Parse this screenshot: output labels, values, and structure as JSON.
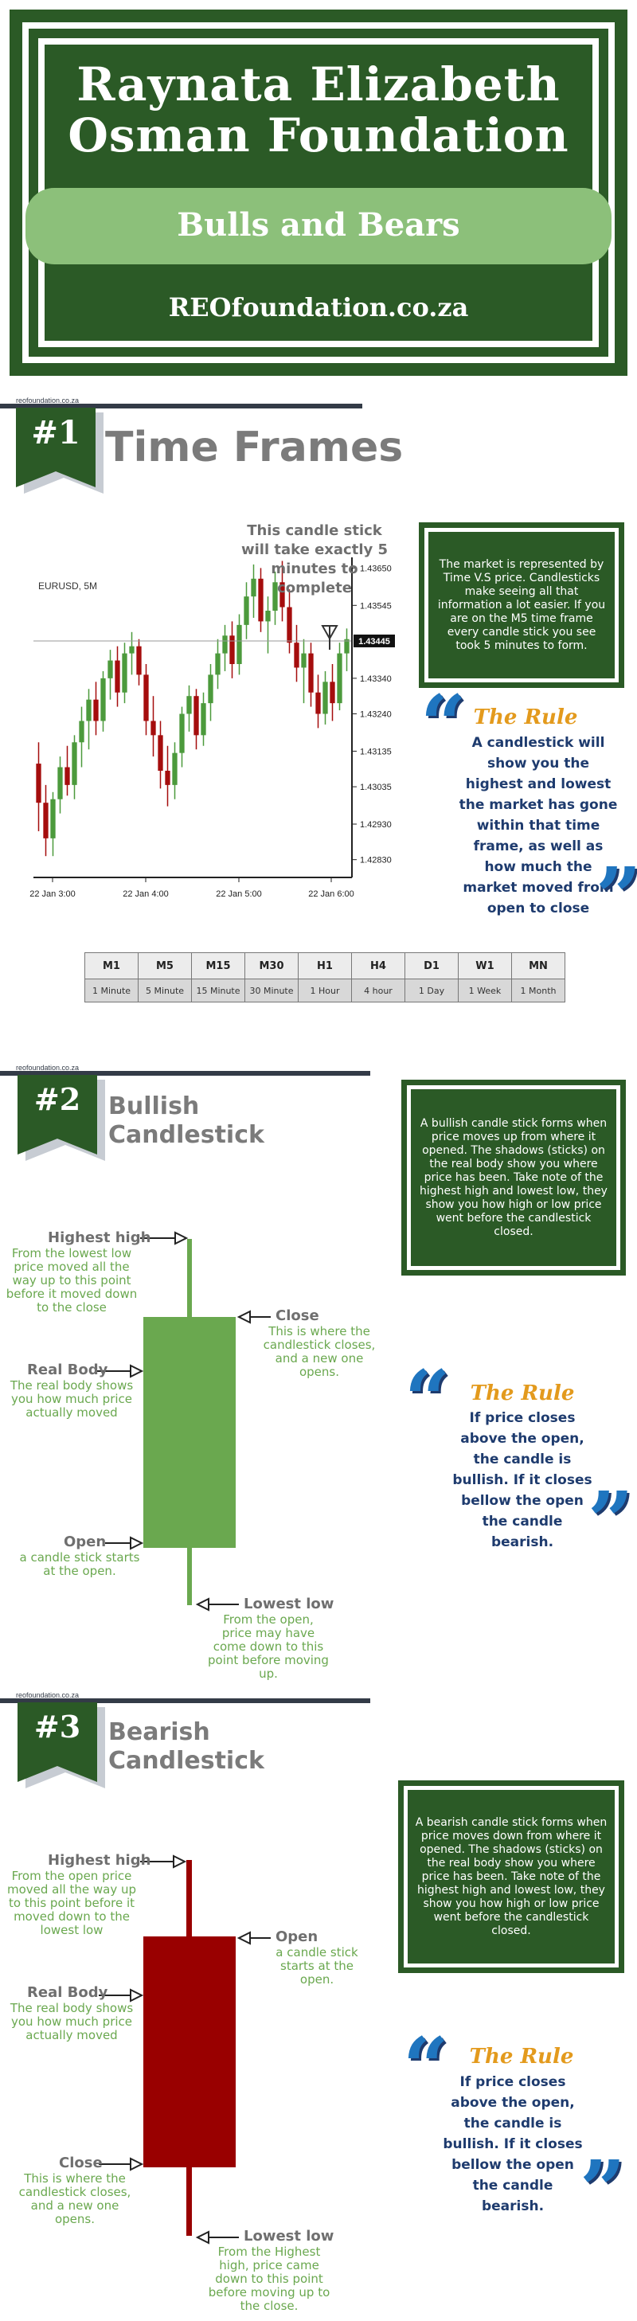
{
  "header": {
    "title_line1": "Raynata Elizabeth",
    "title_line2": "Osman Foundation",
    "subtitle": "Bulls and Bears",
    "url": "REOfoundation.co.za"
  },
  "site_tag": "reofoundation.co.za",
  "section1": {
    "number": "#1",
    "title": "Time Frames",
    "callout": "This candle stick will take exactly 5 minutes to complete",
    "info": "The market is represented by Time V.S price. Candlesticks make seeing all that information a lot easier. If you are on the M5 time frame every candle stick you see took 5 minutes to form.",
    "rule_heading": "The Rule",
    "rule_text": "A candlestick will show you the highest and lowest the market has gone within that time frame, as well as how much the market moved from open to close"
  },
  "chart_data": {
    "type": "candlestick",
    "title": "EURUSD, 5M",
    "x_ticks": [
      "22 Jan 3:00",
      "22 Jan 4:00",
      "22 Jan 5:00",
      "22 Jan 6:00"
    ],
    "y_ticks": [
      "1.43650",
      "1.43545",
      "1.43445",
      "1.43340",
      "1.43240",
      "1.43135",
      "1.43035",
      "1.42930",
      "1.42830"
    ],
    "current_price": "1.43445",
    "ylim": [
      1.4278,
      1.4368
    ],
    "up_color": "#4c9a3c",
    "down_color": "#a50d0d",
    "candles": [
      {
        "o": 1.431,
        "h": 1.4316,
        "l": 1.4291,
        "c": 1.4299
      },
      {
        "o": 1.4299,
        "h": 1.4304,
        "l": 1.4284,
        "c": 1.4289
      },
      {
        "o": 1.4289,
        "h": 1.4302,
        "l": 1.4284,
        "c": 1.43
      },
      {
        "o": 1.43,
        "h": 1.4312,
        "l": 1.4296,
        "c": 1.4309
      },
      {
        "o": 1.4309,
        "h": 1.4315,
        "l": 1.4301,
        "c": 1.4304
      },
      {
        "o": 1.4304,
        "h": 1.4318,
        "l": 1.43,
        "c": 1.4316
      },
      {
        "o": 1.4316,
        "h": 1.4326,
        "l": 1.4309,
        "c": 1.4322
      },
      {
        "o": 1.4322,
        "h": 1.4331,
        "l": 1.4314,
        "c": 1.4328
      },
      {
        "o": 1.4328,
        "h": 1.4333,
        "l": 1.4318,
        "c": 1.4322
      },
      {
        "o": 1.4322,
        "h": 1.4336,
        "l": 1.4319,
        "c": 1.4334
      },
      {
        "o": 1.4334,
        "h": 1.4342,
        "l": 1.4328,
        "c": 1.4339
      },
      {
        "o": 1.4339,
        "h": 1.4343,
        "l": 1.4326,
        "c": 1.433
      },
      {
        "o": 1.433,
        "h": 1.4344,
        "l": 1.4327,
        "c": 1.4341
      },
      {
        "o": 1.4341,
        "h": 1.4347,
        "l": 1.4335,
        "c": 1.4343
      },
      {
        "o": 1.4343,
        "h": 1.4345,
        "l": 1.4332,
        "c": 1.4335
      },
      {
        "o": 1.4335,
        "h": 1.4338,
        "l": 1.4318,
        "c": 1.4322
      },
      {
        "o": 1.4322,
        "h": 1.4329,
        "l": 1.4312,
        "c": 1.4318
      },
      {
        "o": 1.4318,
        "h": 1.4322,
        "l": 1.4303,
        "c": 1.4308
      },
      {
        "o": 1.4308,
        "h": 1.4315,
        "l": 1.4298,
        "c": 1.4304
      },
      {
        "o": 1.4304,
        "h": 1.4316,
        "l": 1.43,
        "c": 1.4313
      },
      {
        "o": 1.4313,
        "h": 1.4326,
        "l": 1.4309,
        "c": 1.4324
      },
      {
        "o": 1.4324,
        "h": 1.4332,
        "l": 1.4319,
        "c": 1.4329
      },
      {
        "o": 1.4329,
        "h": 1.4331,
        "l": 1.4314,
        "c": 1.4318
      },
      {
        "o": 1.4318,
        "h": 1.433,
        "l": 1.4315,
        "c": 1.4327
      },
      {
        "o": 1.4327,
        "h": 1.4338,
        "l": 1.4322,
        "c": 1.4335
      },
      {
        "o": 1.4335,
        "h": 1.4345,
        "l": 1.4331,
        "c": 1.4341
      },
      {
        "o": 1.4341,
        "h": 1.4349,
        "l": 1.4336,
        "c": 1.4346
      },
      {
        "o": 1.4346,
        "h": 1.435,
        "l": 1.4334,
        "c": 1.4338
      },
      {
        "o": 1.4338,
        "h": 1.4352,
        "l": 1.4335,
        "c": 1.4349
      },
      {
        "o": 1.4349,
        "h": 1.4361,
        "l": 1.4345,
        "c": 1.4357
      },
      {
        "o": 1.4357,
        "h": 1.4366,
        "l": 1.4351,
        "c": 1.4362
      },
      {
        "o": 1.4362,
        "h": 1.4365,
        "l": 1.4347,
        "c": 1.435
      },
      {
        "o": 1.435,
        "h": 1.4357,
        "l": 1.4341,
        "c": 1.4353
      },
      {
        "o": 1.4353,
        "h": 1.4364,
        "l": 1.4349,
        "c": 1.4361
      },
      {
        "o": 1.4361,
        "h": 1.4367,
        "l": 1.435,
        "c": 1.4354
      },
      {
        "o": 1.4354,
        "h": 1.4359,
        "l": 1.4341,
        "c": 1.4344
      },
      {
        "o": 1.4344,
        "h": 1.4349,
        "l": 1.4333,
        "c": 1.4337
      },
      {
        "o": 1.4337,
        "h": 1.4345,
        "l": 1.4327,
        "c": 1.4341
      },
      {
        "o": 1.4341,
        "h": 1.4344,
        "l": 1.4326,
        "c": 1.433
      },
      {
        "o": 1.433,
        "h": 1.4335,
        "l": 1.432,
        "c": 1.4324
      },
      {
        "o": 1.4324,
        "h": 1.4336,
        "l": 1.4321,
        "c": 1.4333
      },
      {
        "o": 1.4333,
        "h": 1.4338,
        "l": 1.4322,
        "c": 1.4327
      },
      {
        "o": 1.4327,
        "h": 1.4344,
        "l": 1.4325,
        "c": 1.4341
      },
      {
        "o": 1.4341,
        "h": 1.4348,
        "l": 1.4336,
        "c": 1.4345
      }
    ]
  },
  "timeframes": [
    {
      "code": "M1",
      "label": "1 Minute"
    },
    {
      "code": "M5",
      "label": "5 Minute"
    },
    {
      "code": "M15",
      "label": "15 Minute"
    },
    {
      "code": "M30",
      "label": "30 Minute"
    },
    {
      "code": "H1",
      "label": "1 Hour"
    },
    {
      "code": "H4",
      "label": "4  hour"
    },
    {
      "code": "D1",
      "label": "1 Day"
    },
    {
      "code": "W1",
      "label": "1 Week"
    },
    {
      "code": "MN",
      "label": "1 Month"
    }
  ],
  "section2": {
    "number": "#2",
    "title_line1": "Bullish",
    "title_line2": "Candlestick",
    "info": "A bullish candle stick forms when price moves up from where it opened. The shadows (sticks) on the real body show you where price has been. Take note of the highest high and lowest low, they show you how high or low price went before the candlestick closed.",
    "body_color": "#6aa84f",
    "labels": {
      "high_title": "Highest high",
      "high_text": "From the lowest low price moved all the way up to this point before it moved down to the close",
      "close_title": "Close",
      "close_text": "This is where the candlestick closes, and a new one opens.",
      "body_title": "Real Body",
      "body_text": "The real body shows you how much price actually moved",
      "open_title": "Open",
      "open_text": "a candle stick starts at the open.",
      "low_title": "Lowest low",
      "low_text": "From the open, price may have come down to this point before moving up."
    },
    "rule_heading": "The Rule",
    "rule_text": "If price closes above the open, the candle is bullish. If it closes bellow the open the candle bearish."
  },
  "section3": {
    "number": "#3",
    "title_line1": "Bearish",
    "title_line2": "Candlestick",
    "info": "A bearish candle stick forms when price moves down from where it opened. The shadows (sticks) on the real body show you where price has been. Take note of the highest high and lowest low, they show you how high or low price went before the candlestick closed.",
    "body_color": "#990000",
    "labels": {
      "high_title": "Highest high",
      "high_text": "From the open price moved all the way up to this point before it moved down to the lowest low",
      "open_title": "Open",
      "open_text": "a candle stick starts at the open.",
      "body_title": "Real Body",
      "body_text": "The real body shows you how much price actually moved",
      "close_title": "Close",
      "close_text": "This is where the candlestick closes, and a new one opens.",
      "low_title": "Lowest low",
      "low_text": "From the Highest high, price came down to this point before moving up to the close."
    },
    "rule_heading": "The Rule",
    "rule_text": "If price closes above the open, the candle is bullish. If it closes bellow the open the candle bearish."
  }
}
